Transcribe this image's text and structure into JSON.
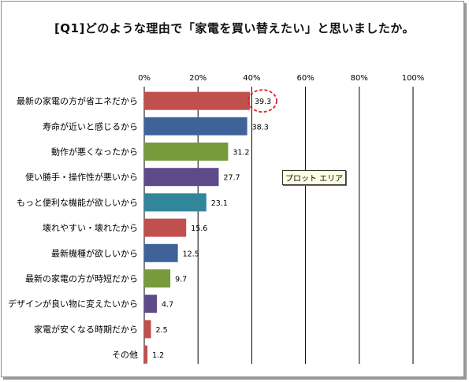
{
  "chart_data": {
    "type": "bar",
    "orientation": "horizontal",
    "title": "[Q1]どのような理由で「家電を買い替えたい」と思いましたか。",
    "categories": [
      "最新の家電の方が省エネだから",
      "寿命が近いと感じるから",
      "動作が悪くなったから",
      "使い勝手・操作性が悪いから",
      "もっと便利な機能が欲しいから",
      "壊れやすい・壊れたから",
      "最新機種が欲しいから",
      "最新の家電の方が時短だから",
      "デザインが良い物に変えたいから",
      "家電が安くなる時期だから",
      "その他"
    ],
    "values": [
      39.3,
      38.3,
      31.2,
      27.7,
      23.1,
      15.6,
      12.5,
      9.7,
      4.7,
      2.5,
      1.2
    ],
    "value_labels": [
      "39.3",
      "38.3",
      "31.2",
      "27.7",
      "23.1",
      "15.6",
      "12.5",
      "9.7",
      "4.7",
      "2.5",
      "1.2"
    ],
    "bar_colors": [
      "#c0504d",
      "#3f6299",
      "#779a3a",
      "#5e4a8a",
      "#31869b",
      "#c0504d",
      "#3f6299",
      "#779a3a",
      "#5e4a8a",
      "#c0504d",
      "#c0504d"
    ],
    "xlim": [
      0,
      100
    ],
    "ticks": [
      "0%",
      "20%",
      "40%",
      "60%",
      "80%",
      "100%"
    ],
    "tick_values": [
      0,
      20,
      40,
      60,
      80,
      100
    ],
    "grid": true,
    "highlight_index": 0,
    "highlight_color": "#e02020"
  },
  "tooltip_text": "プロット エリア"
}
